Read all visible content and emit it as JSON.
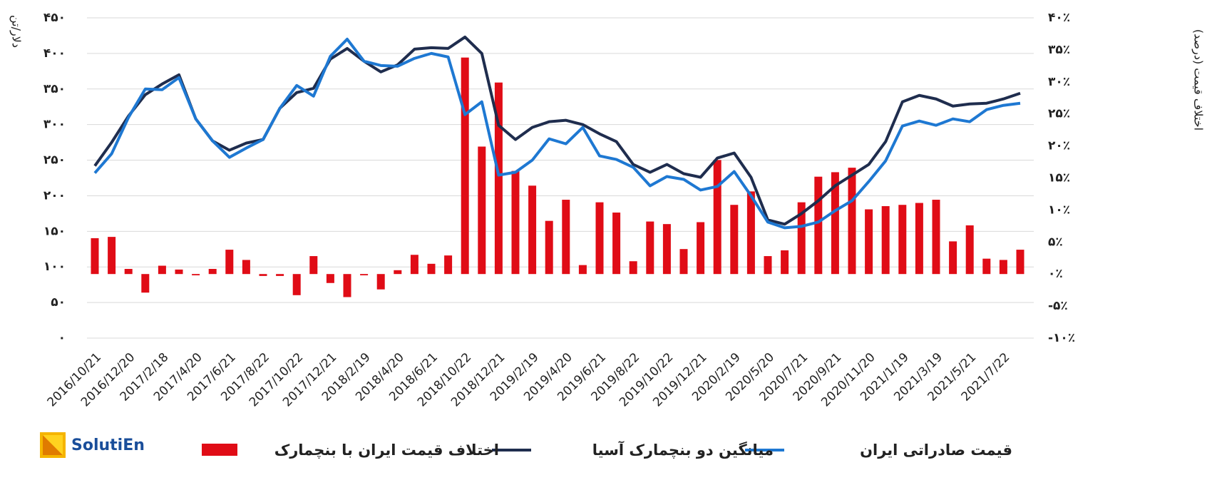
{
  "logo": "SolutiEn",
  "chart_data": {
    "type": "combo",
    "y_label": "دلار/تن",
    "y2_label": "اختلاف قیمت (درصد)",
    "categories": [
      "2016/10/21",
      null,
      "2016/12/20",
      null,
      "2017/2/18",
      null,
      "2017/4/20",
      null,
      "2017/6/21",
      null,
      "2017/8/22",
      null,
      "2017/10/22",
      null,
      "2017/12/21",
      null,
      "2018/2/19",
      null,
      "2018/4/20",
      null,
      "2018/6/21",
      null,
      "2018/10/22",
      null,
      "2018/12/21",
      null,
      "2019/2/19",
      null,
      "2019/4/20",
      null,
      "2019/6/21",
      null,
      "2019/8/22",
      null,
      "2019/10/22",
      null,
      "2019/12/21",
      null,
      "2020/2/19",
      null,
      "2020/5/20",
      null,
      "2020/7/21",
      null,
      "2020/9/21",
      null,
      "2020/11/20",
      null,
      "2021/1/19",
      null,
      "2021/3/19",
      null,
      "2021/5/21",
      null,
      "2021/7/22",
      null
    ],
    "ylim": [
      0,
      450
    ],
    "yticks": [
      {
        "value": 0,
        "label": "۰"
      },
      {
        "value": 50,
        "label": "۵۰"
      },
      {
        "value": 100,
        "label": "۱۰۰"
      },
      {
        "value": 150,
        "label": "۱۵۰"
      },
      {
        "value": 200,
        "label": "۲۰۰"
      },
      {
        "value": 250,
        "label": "۲۵۰"
      },
      {
        "value": 300,
        "label": "۳۰۰"
      },
      {
        "value": 350,
        "label": "۳۵۰"
      },
      {
        "value": 400,
        "label": "۴۰۰"
      },
      {
        "value": 450,
        "label": "۴۵۰"
      }
    ],
    "y2lim": [
      -10,
      40
    ],
    "y2ticks": [
      {
        "value": -10,
        "label": "-۱۰٪"
      },
      {
        "value": -5,
        "label": "-۵٪"
      },
      {
        "value": 0,
        "label": "۰٪"
      },
      {
        "value": 5,
        "label": "۵٪"
      },
      {
        "value": 10,
        "label": "۱۰٪"
      },
      {
        "value": 15,
        "label": "۱۵٪"
      },
      {
        "value": 20,
        "label": "۲۰٪"
      },
      {
        "value": 25,
        "label": "۲۵٪"
      },
      {
        "value": 30,
        "label": "۳۰٪"
      },
      {
        "value": 35,
        "label": "۳۵٪"
      },
      {
        "value": 40,
        "label": "۴۰٪"
      }
    ],
    "grid": true,
    "series": [
      {
        "name": "اختلاف قیمت ایران با بنچمارک",
        "type": "bar",
        "axis": "y2",
        "color": "#e00c16",
        "values": [
          5.6,
          5.8,
          0.8,
          -2.9,
          1.3,
          0.7,
          -0.2,
          0.8,
          3.8,
          2.2,
          -0.3,
          -0.3,
          -3.3,
          2.8,
          -1.4,
          -3.6,
          -0.2,
          -2.4,
          0.6,
          3.0,
          1.6,
          2.9,
          33.8,
          19.9,
          29.9,
          16.1,
          13.8,
          8.3,
          11.6,
          1.4,
          11.2,
          9.6,
          2.0,
          8.2,
          7.8,
          3.9,
          8.1,
          17.8,
          10.8,
          12.9,
          2.8,
          3.7,
          11.2,
          15.2,
          15.9,
          16.6,
          10.1,
          10.6,
          10.8,
          11.1,
          11.6,
          5.1,
          7.6,
          2.4,
          2.2,
          3.8
        ]
      },
      {
        "name": "میانگین دو بنچمارک آسیا",
        "type": "line",
        "color": "#1f2d4e",
        "values": [
          242,
          275,
          312,
          342,
          357,
          370,
          308,
          277,
          264,
          274,
          279,
          323,
          345,
          351,
          392,
          407,
          389,
          374,
          384,
          406,
          408,
          407,
          423,
          400,
          299,
          279,
          296,
          304,
          306,
          300,
          287,
          276,
          244,
          233,
          244,
          231,
          226,
          253,
          260,
          226,
          166,
          160,
          175,
          193,
          214,
          229,
          244,
          276,
          332,
          341,
          336,
          326,
          329,
          330,
          336,
          344
        ]
      },
      {
        "name": "قیمت صادراتی ایران",
        "type": "line",
        "color": "#1e78d2",
        "values": [
          232,
          259,
          310,
          350,
          349,
          366,
          308,
          277,
          254,
          267,
          279,
          323,
          355,
          340,
          396,
          420,
          389,
          383,
          382,
          393,
          400,
          395,
          314,
          332,
          229,
          233,
          250,
          280,
          273,
          296,
          256,
          251,
          240,
          214,
          227,
          223,
          208,
          213,
          234,
          200,
          163,
          155,
          157,
          163,
          179,
          193,
          220,
          249,
          298,
          305,
          299,
          308,
          304,
          321,
          327,
          330
        ]
      }
    ]
  }
}
